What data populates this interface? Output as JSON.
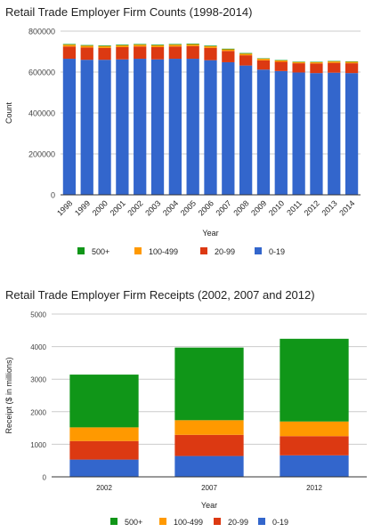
{
  "colors": {
    "s0_19": "#3366cc",
    "s20_99": "#dc3912",
    "s100_499": "#ff9900",
    "s500p": "#109618",
    "grid": "#cccccc",
    "axis": "#333333"
  },
  "chart_data": [
    {
      "type": "bar",
      "stacked": true,
      "title": "Retail Trade Employer Firm Counts (1998-2014)",
      "xlabel": "Year",
      "ylabel": "Count",
      "ylim": [
        0,
        800000
      ],
      "yticks": [
        0,
        200000,
        400000,
        600000,
        800000
      ],
      "ytick_labels": [
        "0",
        "200000",
        "400000",
        "600000",
        "800000"
      ],
      "grid": true,
      "legend_position": "bottom",
      "categories": [
        "1998",
        "1999",
        "2000",
        "2001",
        "2002",
        "2003",
        "2004",
        "2005",
        "2006",
        "2007",
        "2008",
        "2009",
        "2010",
        "2011",
        "2012",
        "2013",
        "2014"
      ],
      "series": [
        {
          "name": "0-19",
          "color_key": "s0_19",
          "values": [
            665000,
            660000,
            660000,
            662000,
            665000,
            662000,
            665000,
            665000,
            658000,
            648000,
            632000,
            612000,
            605000,
            598000,
            595000,
            597000,
            595000
          ]
        },
        {
          "name": "20-99",
          "color_key": "s20_99",
          "values": [
            60000,
            60000,
            58000,
            60000,
            60000,
            60000,
            60000,
            62000,
            60000,
            55000,
            50000,
            45000,
            45000,
            45000,
            47000,
            48000,
            48000
          ]
        },
        {
          "name": "100-499",
          "color_key": "s100_499",
          "values": [
            9000,
            9000,
            9000,
            9000,
            9000,
            9000,
            9000,
            9000,
            8000,
            8000,
            8000,
            8000,
            7000,
            6000,
            6000,
            7000,
            7000
          ]
        },
        {
          "name": "500+",
          "color_key": "s500p",
          "values": [
            3000,
            3000,
            3000,
            3000,
            3000,
            3000,
            3000,
            3000,
            3000,
            3000,
            3000,
            2000,
            2000,
            2000,
            2000,
            2000,
            2000
          ]
        }
      ],
      "legend_order": [
        "500+",
        "100-499",
        "20-99",
        "0-19"
      ]
    },
    {
      "type": "bar",
      "stacked": true,
      "title": "Retail Trade Employer Firm Receipts (2002, 2007 and 2012)",
      "xlabel": "Year",
      "ylabel": "Receipt ($ in millions)",
      "ylim": [
        0,
        5000
      ],
      "yticks": [
        0,
        1000,
        2000,
        3000,
        4000,
        5000
      ],
      "ytick_labels": [
        "0",
        "1000",
        "2000",
        "3000",
        "4000",
        "5000"
      ],
      "grid": true,
      "legend_position": "bottom",
      "categories": [
        "2002",
        "2007",
        "2012"
      ],
      "series": [
        {
          "name": "0-19",
          "color_key": "s0_19",
          "values": [
            530,
            640,
            660
          ]
        },
        {
          "name": "20-99",
          "color_key": "s20_99",
          "values": [
            570,
            650,
            590
          ]
        },
        {
          "name": "100-499",
          "color_key": "s100_499",
          "values": [
            420,
            450,
            450
          ]
        },
        {
          "name": "500+",
          "color_key": "s500p",
          "values": [
            1620,
            2230,
            2540
          ]
        }
      ],
      "legend_order": [
        "500+",
        "100-499",
        "20-99",
        "0-19"
      ]
    }
  ]
}
